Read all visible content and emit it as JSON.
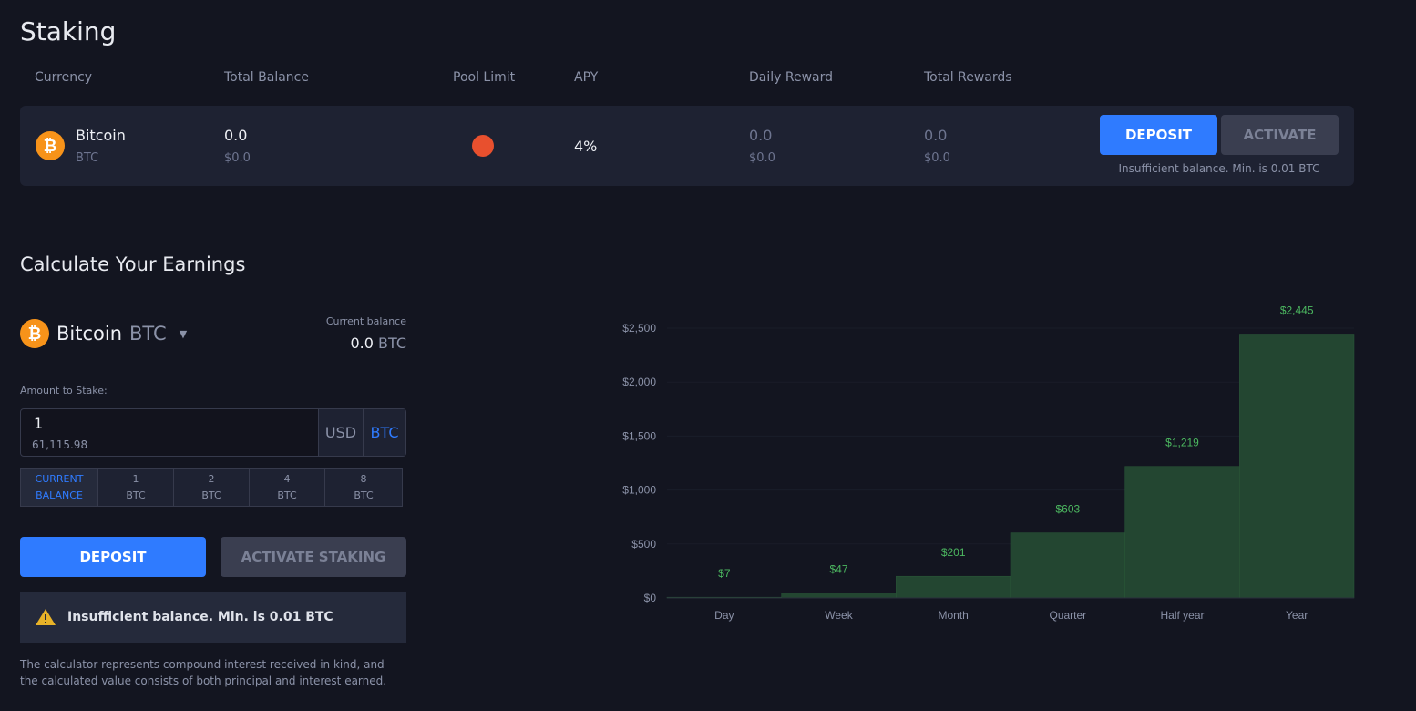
{
  "title": "Staking",
  "table": {
    "headers": [
      "Currency",
      "Total Balance",
      "Pool Limit",
      "APY",
      "Daily Reward",
      "Total Rewards"
    ],
    "row": {
      "name": "Bitcoin",
      "ticker": "BTC",
      "balance": "0.0",
      "balance_usd": "$0.0",
      "pool_limit_color": "#e8502e",
      "apy": "4%",
      "daily": "0.0",
      "daily_usd": "$0.0",
      "total": "0.0",
      "total_usd": "$0.0",
      "deposit": "DEPOSIT",
      "activate": "ACTIVATE",
      "note": "Insufficient balance. Min. is 0.01 BTC"
    }
  },
  "calc": {
    "title": "Calculate Your Earnings",
    "coin_name": "Bitcoin",
    "coin_ticker": "BTC",
    "current_balance_label": "Current balance",
    "current_balance_value": "0.0",
    "current_balance_unit": "BTC",
    "amount_label": "Amount to Stake:",
    "amount_value": "1",
    "amount_converted": "61,115.98",
    "unit_usd": "USD",
    "unit_btc": "BTC",
    "presets": [
      [
        "CURRENT",
        "BALANCE"
      ],
      [
        "1",
        "BTC"
      ],
      [
        "2",
        "BTC"
      ],
      [
        "4",
        "BTC"
      ],
      [
        "8",
        "BTC"
      ]
    ],
    "deposit": "DEPOSIT",
    "activate": "ACTIVATE STAKING",
    "warning": "Insufficient balance. Min. is 0.01 BTC",
    "disclaimer": "The calculator represents compound interest received in kind, and the calculated value consists of both principal and interest earned."
  },
  "chart_data": {
    "type": "bar",
    "categories": [
      "Day",
      "Week",
      "Month",
      "Quarter",
      "Half year",
      "Year"
    ],
    "values": [
      7,
      47,
      201,
      603,
      1219,
      2445
    ],
    "labels": [
      "$7",
      "$47",
      "$201",
      "$603",
      "$1,219",
      "$2,445"
    ],
    "ylim": [
      0,
      2500
    ],
    "yticks": [
      "$0",
      "$500",
      "$1,000",
      "$1,500",
      "$2,000",
      "$2,500"
    ],
    "bar_color": "#234631",
    "label_color": "#4cb860",
    "grid": true
  }
}
